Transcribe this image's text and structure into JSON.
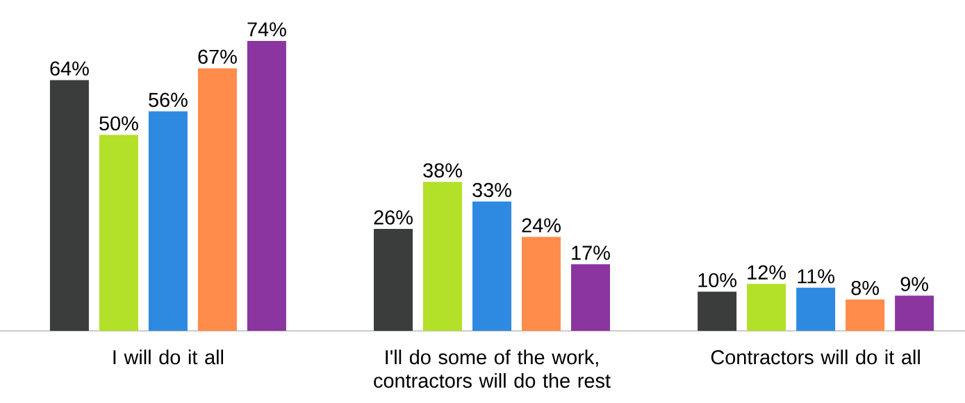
{
  "chart_data": {
    "type": "bar",
    "categories": [
      "I will do it all",
      "I'll do some of the work, contractors will do the rest",
      "Contractors will do it all"
    ],
    "series": [
      {
        "color": "#3b3d3d",
        "values": [
          64,
          26,
          10
        ],
        "value_labels": [
          "64%",
          "26%",
          "10%"
        ]
      },
      {
        "color": "#b3e028",
        "values": [
          50,
          38,
          12
        ],
        "value_labels": [
          "50%",
          "38%",
          "12%"
        ]
      },
      {
        "color": "#2e8ae0",
        "values": [
          56,
          33,
          11
        ],
        "value_labels": [
          "56%",
          "33%",
          "11%"
        ]
      },
      {
        "color": "#ff8c4a",
        "values": [
          67,
          24,
          8
        ],
        "value_labels": [
          "67%",
          "24%",
          "8%"
        ]
      },
      {
        "color": "#8b36a0",
        "values": [
          74,
          17,
          9
        ],
        "value_labels": [
          "74%",
          "17%",
          "9%"
        ]
      }
    ]
  }
}
